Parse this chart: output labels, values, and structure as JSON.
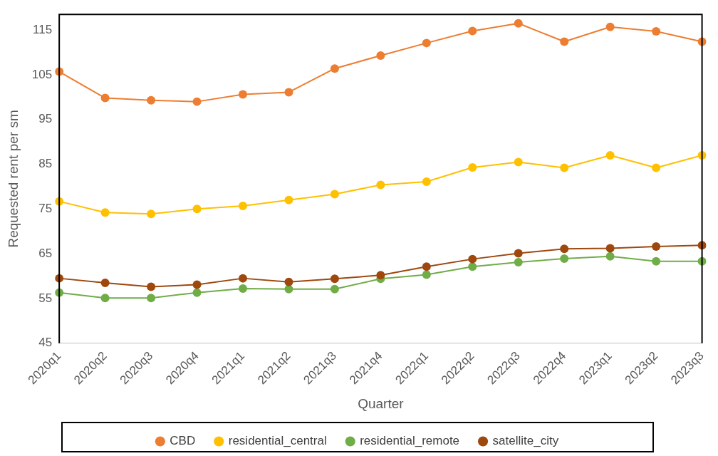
{
  "chart_data": {
    "type": "line",
    "xlabel": "Quarter",
    "ylabel": "Requested rent per sm",
    "categories": [
      "2020q1",
      "2020q2",
      "2020q3",
      "2020q4",
      "2021q1",
      "2021q2",
      "2021q3",
      "2021q4",
      "2022q1",
      "2022q2",
      "2022q3",
      "2022q4",
      "2023q1",
      "2023q2",
      "2023q3"
    ],
    "series": [
      {
        "name": "CBD",
        "color": "#ed7d31",
        "values": [
          105.7,
          99.8,
          99.3,
          99.0,
          100.6,
          101.1,
          106.4,
          109.3,
          112.1,
          114.8,
          116.5,
          112.4,
          115.7,
          114.7,
          112.4
        ]
      },
      {
        "name": "residential_central",
        "color": "#ffc000",
        "values": [
          76.7,
          74.2,
          73.9,
          75.0,
          75.7,
          77.0,
          78.3,
          80.4,
          81.1,
          84.3,
          85.5,
          84.2,
          87.0,
          84.2,
          87.0
        ]
      },
      {
        "name": "residential_remote",
        "color": "#70ad47",
        "values": [
          56.3,
          55.1,
          55.1,
          56.3,
          57.2,
          57.1,
          57.1,
          59.4,
          60.3,
          62.1,
          63.1,
          63.9,
          64.4,
          63.3,
          63.3
        ]
      },
      {
        "name": "satellite_city",
        "color": "#9e480e",
        "values": [
          59.5,
          58.5,
          57.6,
          58.1,
          59.5,
          58.7,
          59.4,
          60.2,
          62.1,
          63.8,
          65.1,
          66.1,
          66.2,
          66.6,
          66.9
        ]
      }
    ],
    "ylim": [
      45,
      118.5
    ],
    "yticks": [
      45,
      55,
      65,
      75,
      85,
      95,
      105,
      115
    ],
    "grid": false,
    "legend": "bottom",
    "marker": "circle",
    "line_style": "solid"
  }
}
